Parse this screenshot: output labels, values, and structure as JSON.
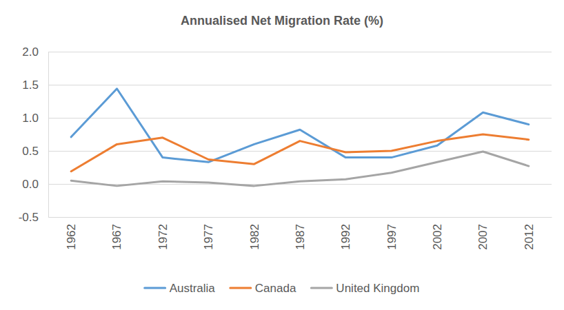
{
  "chart_data": {
    "type": "line",
    "title": "Annualised Net Migration Rate (%)",
    "categories": [
      "1962",
      "1967",
      "1972",
      "1977",
      "1982",
      "1987",
      "1992",
      "1997",
      "2002",
      "2007",
      "2012"
    ],
    "series": [
      {
        "name": "Australia",
        "color": "#5B9BD5",
        "values": [
          0.71,
          1.44,
          0.4,
          0.33,
          0.6,
          0.82,
          0.4,
          0.4,
          0.58,
          1.08,
          0.9
        ]
      },
      {
        "name": "Canada",
        "color": "#ED7D31",
        "values": [
          0.19,
          0.6,
          0.7,
          0.37,
          0.3,
          0.65,
          0.48,
          0.5,
          0.65,
          0.75,
          0.67
        ]
      },
      {
        "name": "United Kingdom",
        "color": "#A5A5A5",
        "values": [
          0.05,
          -0.03,
          0.04,
          0.02,
          -0.03,
          0.04,
          0.07,
          0.17,
          0.33,
          0.49,
          0.27
        ]
      }
    ],
    "ylim": [
      -0.5,
      2.0
    ],
    "yticks": [
      -0.5,
      {
        "value": 0,
        "label": "0.0"
      },
      0.5,
      {
        "value": 1,
        "label": "1.0"
      },
      1.5,
      {
        "value": 2,
        "label": "2.0"
      }
    ],
    "grid": true,
    "legend": "bottom"
  }
}
